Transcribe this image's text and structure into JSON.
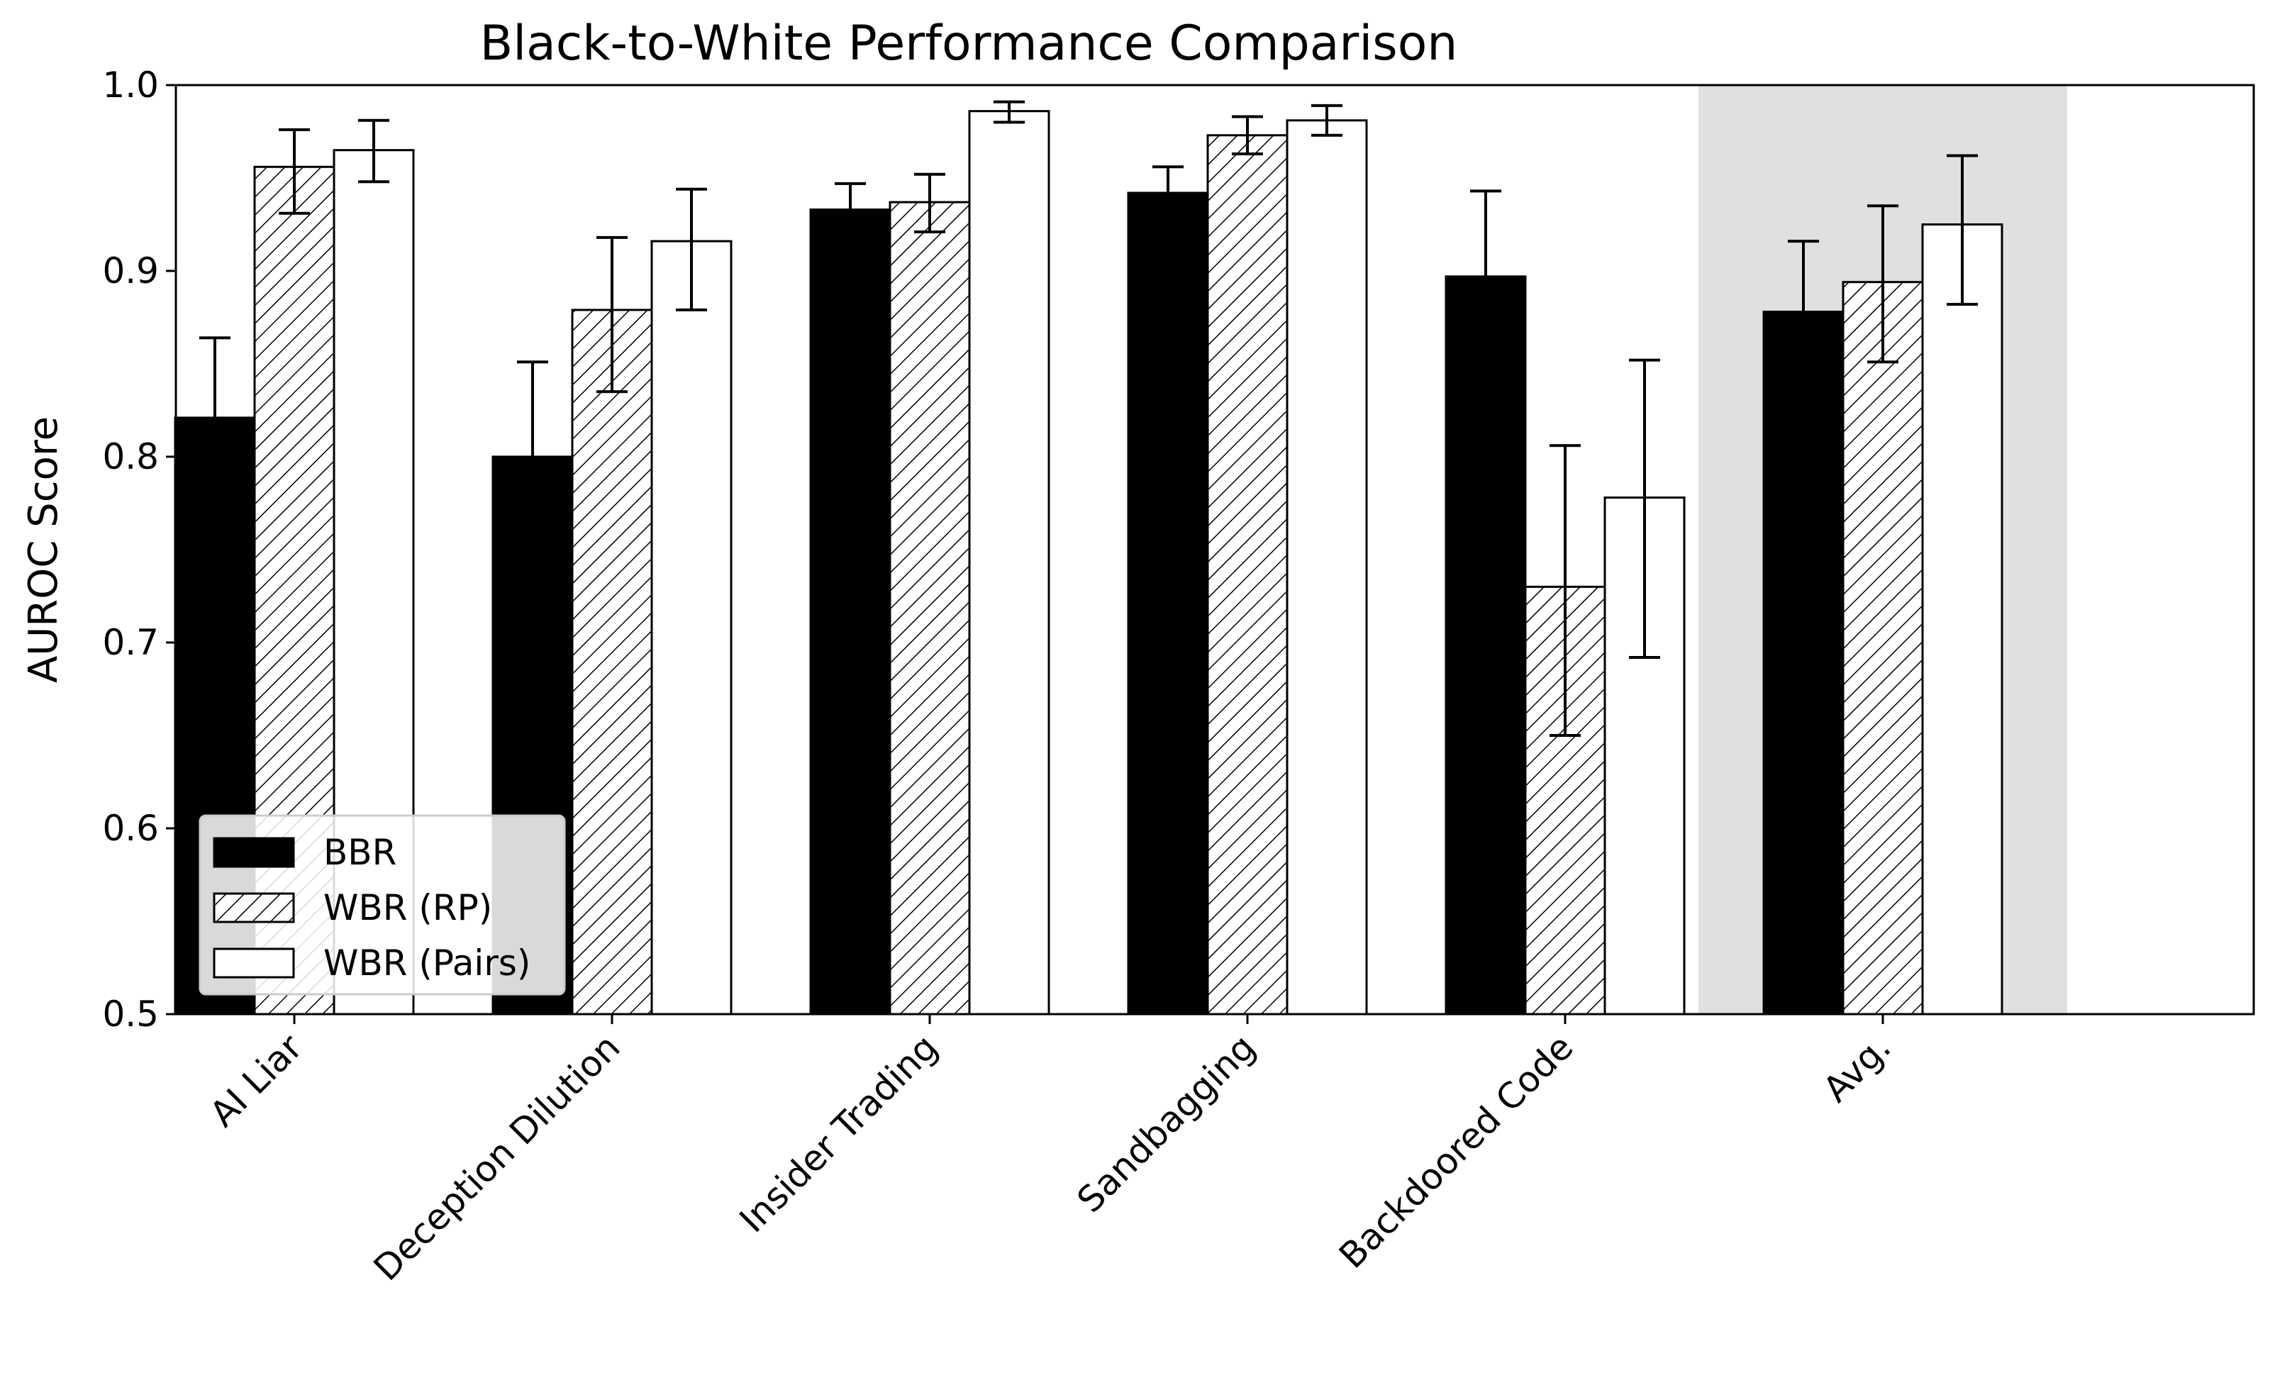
{
  "chart_data": {
    "type": "bar",
    "title": "Black-to-White Performance Comparison",
    "xlabel": "",
    "ylabel": "AUROC Score",
    "ylim": [
      0.5,
      1.0
    ],
    "yticks": [
      "0.5",
      "0.6",
      "0.7",
      "0.8",
      "0.9",
      "1.0"
    ],
    "categories": [
      "AI Liar",
      "Deception Dilution",
      "Insider Trading",
      "Sandbagging",
      "Backdoored Code",
      "Avg."
    ],
    "highlighted_category": "Avg.",
    "series": [
      {
        "name": "BBR",
        "style": "solid",
        "values": [
          0.821,
          0.8,
          0.933,
          0.942,
          0.897,
          0.878
        ],
        "error_low": [
          0.778,
          0.75,
          0.919,
          0.928,
          0.852,
          0.841
        ],
        "error_high": [
          0.864,
          0.851,
          0.947,
          0.956,
          0.943,
          0.916
        ]
      },
      {
        "name": "WBR (RP)",
        "style": "hatched",
        "values": [
          0.956,
          0.879,
          0.937,
          0.973,
          0.73,
          0.894
        ],
        "error_low": [
          0.931,
          0.835,
          0.921,
          0.963,
          0.65,
          0.851
        ],
        "error_high": [
          0.976,
          0.918,
          0.952,
          0.983,
          0.806,
          0.935
        ]
      },
      {
        "name": "WBR (Pairs)",
        "style": "empty",
        "values": [
          0.965,
          0.916,
          0.986,
          0.981,
          0.778,
          0.925
        ],
        "error_low": [
          0.948,
          0.879,
          0.98,
          0.973,
          0.692,
          0.882
        ],
        "error_high": [
          0.981,
          0.944,
          0.991,
          0.989,
          0.852,
          0.962
        ]
      }
    ],
    "legend_position": "lower-left",
    "grid": false,
    "colors": {
      "solid": "#000000",
      "empty": "#ffffff",
      "highlight": "#e0e0e0",
      "edge": "#000000"
    }
  }
}
